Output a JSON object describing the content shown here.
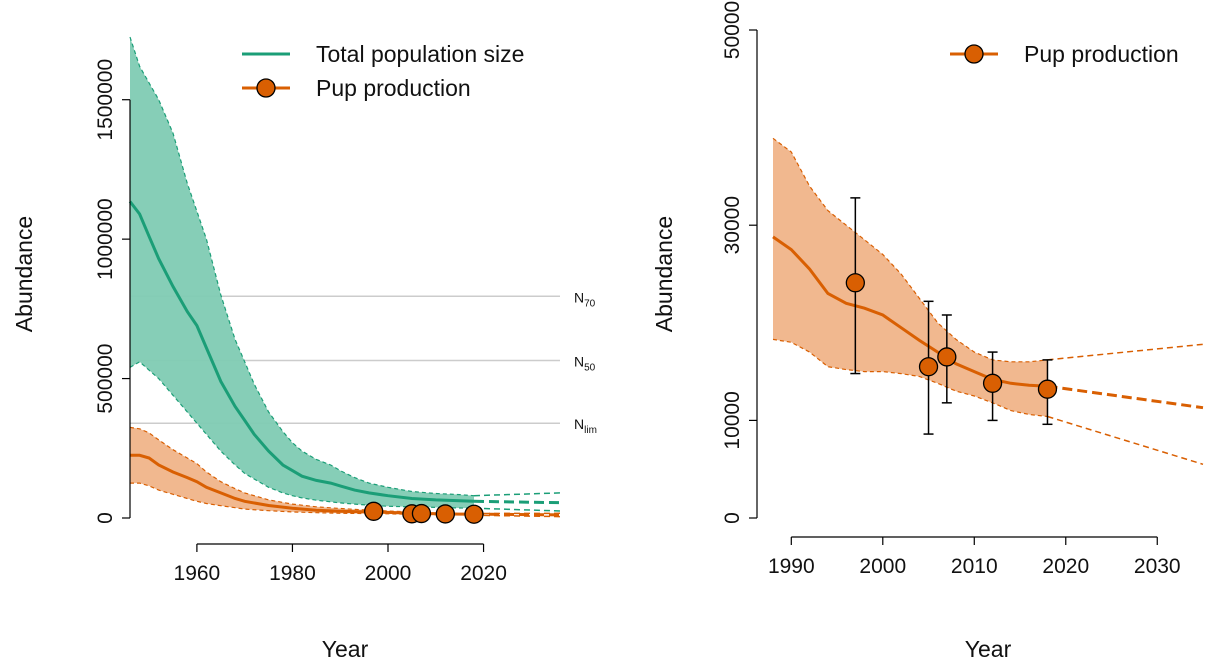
{
  "colors": {
    "total": "#1b9e77",
    "total_fill": "#7fcbb3",
    "pup": "#d95f02",
    "pup_fill": "#f0b489",
    "refline": "#cccccc",
    "axis": "#000000"
  },
  "chart_data": [
    {
      "type": "line",
      "xlabel": "Year",
      "ylabel": "Abundance",
      "xlim": [
        1946,
        2036
      ],
      "ylim": [
        0,
        1750000
      ],
      "x_ticks": [
        "1960",
        "1980",
        "2000",
        "2020"
      ],
      "y_ticks": [
        "0",
        "500000",
        "1000000",
        "1500000"
      ],
      "legend_position": "top-right",
      "legend": [
        "Total population size",
        "Pup production"
      ],
      "reference_lines": [
        {
          "label_main": "N",
          "label_sub": "70",
          "y": 795000
        },
        {
          "label_main": "N",
          "label_sub": "50",
          "y": 565000
        },
        {
          "label_main": "N",
          "label_sub": "lim",
          "y": 340000
        }
      ],
      "series": [
        {
          "name": "Total population size",
          "style": "line-band",
          "x": [
            1946,
            1948,
            1950,
            1952,
            1955,
            1958,
            1960,
            1962,
            1965,
            1968,
            1970,
            1972,
            1975,
            1978,
            1980,
            1982,
            1985,
            1988,
            1990,
            1993,
            1996,
            2000,
            2005,
            2010,
            2015,
            2018
          ],
          "y": [
            1135000,
            1090000,
            1010000,
            930000,
            830000,
            740000,
            690000,
            610000,
            490000,
            400000,
            350000,
            300000,
            240000,
            190000,
            170000,
            150000,
            135000,
            125000,
            115000,
            100000,
            90000,
            80000,
            70000,
            65000,
            62000,
            60000
          ],
          "lower": [
            540000,
            560000,
            530000,
            500000,
            440000,
            380000,
            340000,
            300000,
            240000,
            190000,
            160000,
            140000,
            110000,
            90000,
            80000,
            72000,
            64000,
            58000,
            54000,
            50000,
            46000,
            42000,
            40000,
            38000,
            36000,
            35000
          ],
          "upper": [
            1725000,
            1620000,
            1560000,
            1500000,
            1380000,
            1200000,
            1100000,
            1000000,
            800000,
            640000,
            560000,
            480000,
            380000,
            310000,
            270000,
            240000,
            210000,
            190000,
            170000,
            145000,
            125000,
            110000,
            95000,
            88000,
            84000,
            80000
          ],
          "projection": {
            "x": [
              2018,
              2036
            ],
            "y": [
              60000,
              55000
            ],
            "lower": [
              35000,
              25000
            ],
            "upper": [
              80000,
              90000
            ]
          }
        },
        {
          "name": "Pup production",
          "style": "line-band",
          "x": [
            1946,
            1948,
            1950,
            1952,
            1955,
            1958,
            1960,
            1962,
            1965,
            1968,
            1970,
            1975,
            1980,
            1985,
            1990,
            1995,
            2000,
            2005,
            2010,
            2015,
            2018
          ],
          "y": [
            225000,
            225000,
            215000,
            190000,
            165000,
            145000,
            130000,
            110000,
            90000,
            70000,
            60000,
            45000,
            35000,
            28000,
            24000,
            22000,
            20000,
            17000,
            15000,
            14000,
            14000
          ],
          "lower": [
            125000,
            125000,
            115000,
            100000,
            85000,
            70000,
            60000,
            52000,
            44000,
            37000,
            32000,
            26000,
            22000,
            19000,
            17000,
            16000,
            15000,
            13000,
            12000,
            11000,
            10000
          ],
          "upper": [
            325000,
            320000,
            305000,
            280000,
            245000,
            215000,
            195000,
            165000,
            130000,
            105000,
            90000,
            65000,
            50000,
            40000,
            34000,
            29000,
            25000,
            22000,
            18000,
            16000,
            16000
          ],
          "projection": {
            "x": [
              2018,
              2036
            ],
            "y": [
              14000,
              11000
            ],
            "lower": [
              10000,
              5000
            ],
            "upper": [
              16000,
              17000
            ]
          },
          "points": [
            {
              "x": 1997,
              "y": 24000
            },
            {
              "x": 2005,
              "y": 15000
            },
            {
              "x": 2007,
              "y": 16000
            },
            {
              "x": 2012,
              "y": 14500
            },
            {
              "x": 2018,
              "y": 13500
            }
          ]
        }
      ]
    },
    {
      "type": "line",
      "xlabel": "Year",
      "ylabel": "Abundance",
      "xlim": [
        1988,
        2035
      ],
      "ylim": [
        0,
        50000
      ],
      "x_ticks": [
        "1990",
        "2000",
        "2010",
        "2020",
        "2030"
      ],
      "y_ticks": [
        "0",
        "10000",
        "30000",
        "50000"
      ],
      "legend_position": "top-right",
      "legend": [
        "Pup production"
      ],
      "series": [
        {
          "name": "Pup production",
          "style": "line-band",
          "x": [
            1988,
            1990,
            1992,
            1994,
            1996,
            1998,
            2000,
            2002,
            2004,
            2006,
            2008,
            2010,
            2012,
            2014,
            2016,
            2018
          ],
          "y": [
            28800,
            27500,
            25500,
            23000,
            22000,
            21500,
            20800,
            19500,
            18200,
            17000,
            15800,
            15000,
            14200,
            13800,
            13600,
            13500
          ],
          "lower": [
            18300,
            18000,
            17000,
            15500,
            15200,
            15000,
            15000,
            14800,
            14500,
            13800,
            13000,
            12500,
            11800,
            11000,
            10600,
            10400
          ],
          "upper": [
            38900,
            37500,
            34000,
            31500,
            30000,
            28500,
            27000,
            25000,
            22500,
            20000,
            18300,
            17000,
            16200,
            16000,
            16000,
            16200
          ],
          "projection": {
            "x": [
              2018,
              2035
            ],
            "y": [
              13500,
              11300
            ],
            "lower": [
              10400,
              5500
            ],
            "upper": [
              16200,
              17800
            ]
          },
          "points": [
            {
              "x": 1997,
              "y": 24100,
              "lower": 14800,
              "upper": 32800
            },
            {
              "x": 2005,
              "y": 15500,
              "lower": 8600,
              "upper": 22200
            },
            {
              "x": 2007,
              "y": 16500,
              "lower": 11800,
              "upper": 20800
            },
            {
              "x": 2012,
              "y": 13800,
              "lower": 10000,
              "upper": 17000
            },
            {
              "x": 2018,
              "y": 13200,
              "lower": 9600,
              "upper": 16200
            }
          ]
        }
      ]
    }
  ]
}
